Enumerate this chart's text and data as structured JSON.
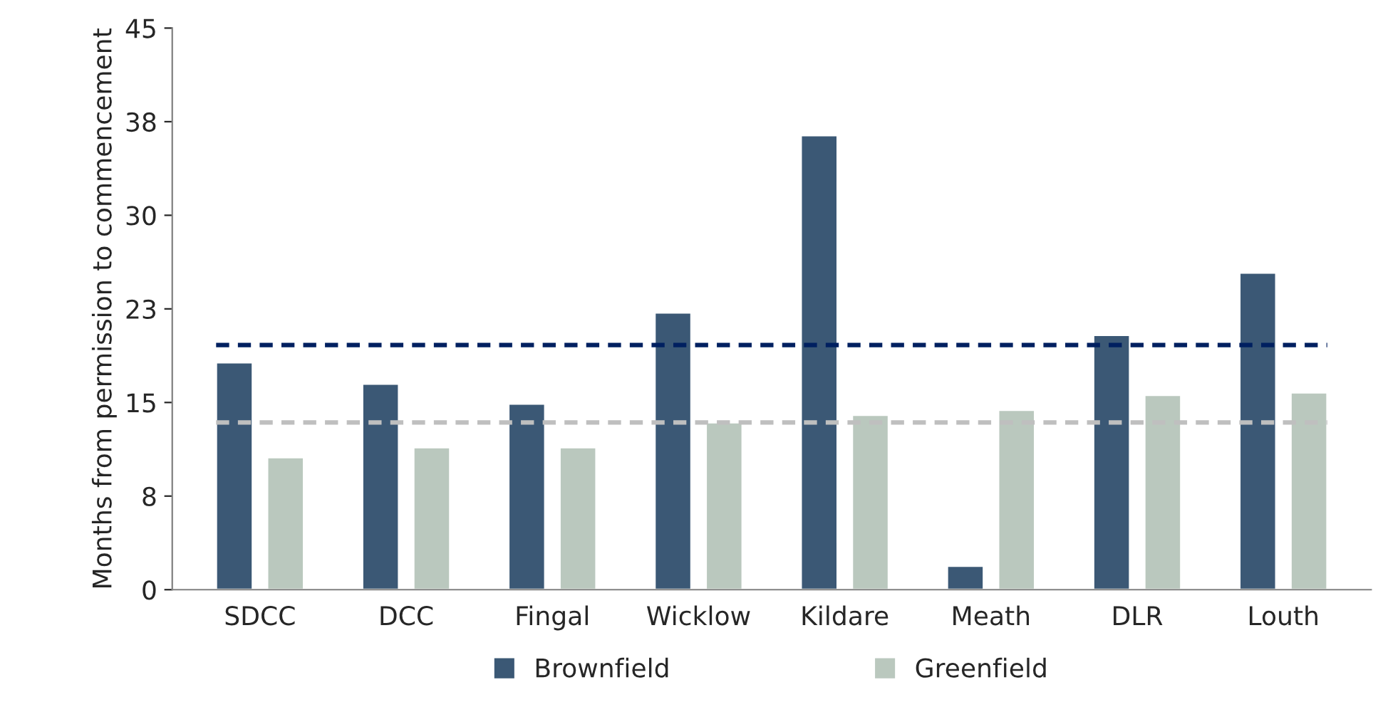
{
  "chart_data": {
    "type": "bar",
    "ylabel": "Months from permission to commencement",
    "categories": [
      "SDCC",
      "DCC",
      "Fingal",
      "Wicklow",
      "Kildare",
      "Meath",
      "DLR",
      "Louth"
    ],
    "series": [
      {
        "name": "Brownfield",
        "color": "#3b5875",
        "values": [
          18.2,
          16.5,
          14.9,
          22.2,
          36.4,
          1.9,
          20.4,
          25.4
        ]
      },
      {
        "name": "Greenfield",
        "color": "#bac8be",
        "values": [
          10.6,
          11.4,
          11.4,
          13.4,
          14.0,
          14.4,
          15.6,
          15.8
        ]
      }
    ],
    "ylim": [
      0,
      45
    ],
    "yticks": [
      0,
      {
        "value": 7.5,
        "label": "8"
      },
      15,
      {
        "value": 22.5,
        "label": "23"
      },
      30,
      {
        "value": 37.5,
        "label": "38"
      },
      45
    ],
    "ref_lines": [
      {
        "axis": "y",
        "value": 19.6,
        "label": null,
        "color": "#002060",
        "line_style": "dashed"
      },
      {
        "axis": "y",
        "value": 13.4,
        "label": null,
        "color": "#bfbfbf",
        "line_style": "dashed"
      }
    ],
    "grid": false,
    "legend": "bottom"
  }
}
